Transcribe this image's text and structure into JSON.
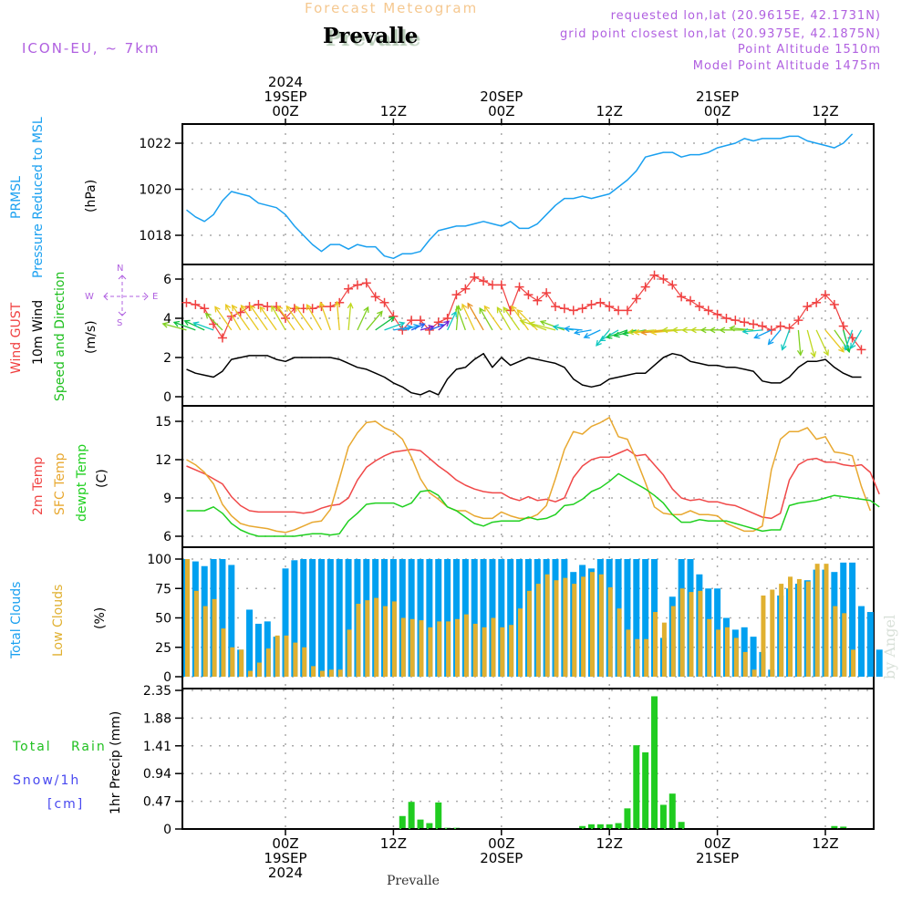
{
  "header": {
    "model": "ICON-EU, ~ 7km",
    "title": "Forecast Meteogram",
    "station": "Prevalle",
    "requested": "requested lon,lat (20.9615E, 42.1731N)",
    "grid_point": "grid point closest lon,lat (20.9375E, 42.1875N)",
    "point_altitude": "Point Altitude 1510m",
    "model_altitude": "Model Point Altitude 1475m"
  },
  "footer": {
    "station": "Prevalle",
    "watermark": "by Angel"
  },
  "time_axis": {
    "start_hour": -11,
    "end_hour": 65,
    "top_ticks": [
      {
        "hour": 0,
        "lines": [
          "2024",
          "19SEP",
          "00Z"
        ]
      },
      {
        "hour": 12,
        "lines": [
          "12Z"
        ]
      },
      {
        "hour": 24,
        "lines": [
          "20SEP",
          "00Z"
        ]
      },
      {
        "hour": 36,
        "lines": [
          "12Z"
        ]
      },
      {
        "hour": 48,
        "lines": [
          "21SEP",
          "00Z"
        ]
      },
      {
        "hour": 60,
        "lines": [
          "12Z"
        ]
      }
    ],
    "bottom_ticks": [
      {
        "hour": 0,
        "lines": [
          "00Z",
          "19SEP",
          "2024"
        ]
      },
      {
        "hour": 12,
        "lines": [
          "12Z"
        ]
      },
      {
        "hour": 24,
        "lines": [
          "00Z",
          "20SEP"
        ]
      },
      {
        "hour": 36,
        "lines": [
          "12Z"
        ]
      },
      {
        "hour": 48,
        "lines": [
          "00Z",
          "21SEP"
        ]
      },
      {
        "hour": 60,
        "lines": [
          "12Z"
        ]
      }
    ]
  },
  "labels": {
    "pressure": {
      "line1": "PRMSL",
      "line2": "Pressure Reduced to MSL",
      "unit": "(hPa)"
    },
    "wind": {
      "gust": "Wind GUST",
      "wind10": "10m Wind",
      "speeddir": "Speed and Direction",
      "unit": "(m/s)",
      "compass": {
        "n": "N",
        "s": "S",
        "w": "W",
        "e": "E"
      }
    },
    "temp": {
      "t2m": "2m Temp",
      "sfc": "SFC Temp",
      "dewpt": "dewpt Temp",
      "unit": "(C)"
    },
    "clouds": {
      "total": "Total Clouds",
      "low": "Low Clouds",
      "unit": "(%)"
    },
    "precip": {
      "total": "Total",
      "rain": "Rain",
      "snow": "Snow/1h",
      "snow_unit": "[cm]",
      "axis": "1hr Precip (mm)"
    }
  },
  "colors": {
    "pressure": "#1aa0f0",
    "gust": "#f04040",
    "wind10": "#000000",
    "t2m": "#f04848",
    "sfc": "#e8a830",
    "dewpt": "#20d020",
    "total_clouds": "#00a0f0",
    "low_clouds": "#e0b030",
    "precip": "#20cc20",
    "label_purple": "#b060e0",
    "label_blue": "#4848f0"
  },
  "chart_data": [
    {
      "type": "line",
      "title": "PRMSL Pressure Reduced to MSL",
      "ylabel": "(hPa)",
      "ylim": [
        1016.9,
        1022.8
      ],
      "yticks": [
        "1018",
        "1020",
        "1022"
      ],
      "ytick_values": [
        1018,
        1020,
        1022
      ],
      "grid": true,
      "series": [
        {
          "name": "PRMSL",
          "values": [
            1019.1,
            1018.8,
            1018.6,
            1018.9,
            1019.5,
            1019.9,
            1019.8,
            1019.7,
            1019.4,
            1019.3,
            1019.2,
            1018.9,
            1018.4,
            1018.0,
            1017.6,
            1017.3,
            1017.6,
            1017.6,
            1017.4,
            1017.6,
            1017.5,
            1017.5,
            1017.1,
            1017.0,
            1017.2,
            1017.2,
            1017.3,
            1017.8,
            1018.2,
            1018.3,
            1018.4,
            1018.4,
            1018.5,
            1018.6,
            1018.5,
            1018.4,
            1018.6,
            1018.3,
            1018.3,
            1018.5,
            1018.9,
            1019.3,
            1019.6,
            1019.6,
            1019.7,
            1019.6,
            1019.7,
            1019.8,
            1020.1,
            1020.4,
            1020.8,
            1021.4,
            1021.5,
            1021.6,
            1021.6,
            1021.4,
            1021.5,
            1021.5,
            1021.6,
            1021.8,
            1021.9,
            1022.0,
            1022.2,
            1022.1,
            1022.2,
            1022.2,
            1022.2,
            1022.3,
            1022.3,
            1022.1,
            1022.0,
            1021.9,
            1021.8,
            1022.0,
            1022.4
          ]
        }
      ]
    },
    {
      "type": "line",
      "title": "Wind GUST / 10m Wind Speed and Direction",
      "ylabel": "(m/s)",
      "ylim": [
        -0.3,
        6.6
      ],
      "yticks": [
        "0",
        "2",
        "4",
        "6"
      ],
      "ytick_values": [
        0,
        2,
        4,
        6
      ],
      "grid": true,
      "series": [
        {
          "name": "Wind GUST",
          "marker": "+",
          "values": [
            4.8,
            4.7,
            4.5,
            3.7,
            3.0,
            4.1,
            4.3,
            4.6,
            4.7,
            4.6,
            4.6,
            4.0,
            4.5,
            4.5,
            4.5,
            4.6,
            4.6,
            4.8,
            5.5,
            5.7,
            5.8,
            5.1,
            4.8,
            4.1,
            3.4,
            3.9,
            3.9,
            3.4,
            3.8,
            4.0,
            5.2,
            5.5,
            6.1,
            5.9,
            5.7,
            5.7,
            4.4,
            5.6,
            5.2,
            4.9,
            5.3,
            4.6,
            4.5,
            4.4,
            4.5,
            4.7,
            4.8,
            4.6,
            4.4,
            4.4,
            5.0,
            5.6,
            6.2,
            6.0,
            5.7,
            5.1,
            4.9,
            4.6,
            4.4,
            4.2,
            4.0,
            3.9,
            3.8,
            3.7,
            3.6,
            3.4,
            3.6,
            3.5,
            3.9,
            4.6,
            4.8,
            5.2,
            4.7,
            3.6,
            3.0,
            2.4
          ]
        },
        {
          "name": "10m Wind",
          "values": [
            1.4,
            1.2,
            1.1,
            1.0,
            1.3,
            1.9,
            2.0,
            2.1,
            2.1,
            2.1,
            1.9,
            1.8,
            2.0,
            2.0,
            2.0,
            2.0,
            2.0,
            1.9,
            1.7,
            1.5,
            1.4,
            1.2,
            1.0,
            0.7,
            0.5,
            0.2,
            0.1,
            0.3,
            0.1,
            0.9,
            1.4,
            1.5,
            1.9,
            2.2,
            1.5,
            2.0,
            1.6,
            1.8,
            2.0,
            1.9,
            1.8,
            1.7,
            1.5,
            0.9,
            0.6,
            0.5,
            0.6,
            0.9,
            1.0,
            1.1,
            1.2,
            1.2,
            1.6,
            2.0,
            2.2,
            2.1,
            1.8,
            1.7,
            1.6,
            1.6,
            1.5,
            1.5,
            1.4,
            1.3,
            0.8,
            0.7,
            0.7,
            1.0,
            1.5,
            1.8,
            1.8,
            1.9,
            1.5,
            1.2,
            1.0,
            1.0
          ]
        },
        {
          "name": "Wind direction arrows (deg from which wind blows, colored by speed)",
          "values": [
            105,
            110,
            115,
            110,
            135,
            145,
            150,
            145,
            145,
            145,
            145,
            150,
            145,
            145,
            145,
            150,
            160,
            175,
            185,
            205,
            220,
            235,
            250,
            260,
            255,
            245,
            255,
            250,
            230,
            205,
            185,
            160,
            155,
            150,
            150,
            145,
            150,
            145,
            145,
            135,
            110,
            105,
            110,
            100,
            95,
            80,
            65,
            40,
            60,
            70,
            75,
            80,
            85,
            85,
            85,
            85,
            90,
            90,
            90,
            90,
            90,
            90,
            90,
            95,
            85,
            65,
            40,
            20,
            355,
            345,
            335,
            320,
            325,
            345,
            20,
            30
          ]
        }
      ]
    },
    {
      "type": "line",
      "title": "2m Temp / SFC Temp / dewpt Temp",
      "ylabel": "(C)",
      "ylim": [
        5.5,
        15.7
      ],
      "yticks": [
        "6",
        "9",
        "12",
        "15"
      ],
      "ytick_values": [
        6,
        9,
        12,
        15
      ],
      "grid": true,
      "series": [
        {
          "name": "2m Temp",
          "values": [
            11.5,
            11.2,
            10.9,
            10.5,
            10.1,
            9.1,
            8.4,
            8.0,
            7.9,
            7.9,
            7.9,
            7.9,
            7.9,
            7.8,
            7.9,
            8.2,
            8.4,
            8.5,
            9.0,
            10.4,
            11.4,
            11.9,
            12.3,
            12.6,
            12.7,
            12.8,
            12.7,
            12.1,
            11.5,
            11.0,
            10.4,
            10.0,
            9.7,
            9.5,
            9.4,
            9.4,
            9.0,
            8.8,
            9.1,
            8.8,
            8.9,
            8.7,
            9.0,
            10.6,
            11.5,
            12.0,
            12.2,
            12.2,
            12.5,
            12.8,
            12.3,
            12.4,
            11.6,
            10.8,
            9.7,
            9.0,
            8.8,
            8.9,
            8.7,
            8.7,
            8.5,
            8.4,
            8.1,
            7.8,
            7.5,
            7.4,
            7.8,
            10.4,
            11.6,
            12.0,
            12.1,
            11.8,
            11.8,
            11.6,
            11.5,
            11.6,
            11.0,
            9.3
          ]
        },
        {
          "name": "SFC Temp",
          "values": [
            12.0,
            11.6,
            11.0,
            10.1,
            8.5,
            7.6,
            7.0,
            6.8,
            6.7,
            6.6,
            6.4,
            6.3,
            6.5,
            6.8,
            7.1,
            7.2,
            8.1,
            10.5,
            13.0,
            14.1,
            14.9,
            15.0,
            14.5,
            14.2,
            13.6,
            12.2,
            10.5,
            9.4,
            8.9,
            8.3,
            8.0,
            8.0,
            7.6,
            7.4,
            7.4,
            7.9,
            7.6,
            7.4,
            7.4,
            7.7,
            8.4,
            10.5,
            12.8,
            14.2,
            14.0,
            14.6,
            14.9,
            15.3,
            13.8,
            13.6,
            12.0,
            10.2,
            8.3,
            7.8,
            7.7,
            7.7,
            8.0,
            7.7,
            7.7,
            7.6,
            7.0,
            6.7,
            6.4,
            6.4,
            6.8,
            11.2,
            13.6,
            14.2,
            14.2,
            14.5,
            13.6,
            13.8,
            12.6,
            12.5,
            12.3,
            9.9,
            8.0
          ]
        },
        {
          "name": "dewpt Temp",
          "values": [
            8.0,
            8.0,
            8.0,
            8.3,
            7.8,
            7.0,
            6.5,
            6.2,
            6.0,
            6.0,
            6.0,
            6.0,
            6.0,
            6.1,
            6.2,
            6.2,
            6.1,
            6.2,
            7.2,
            7.8,
            8.5,
            8.6,
            8.6,
            8.6,
            8.3,
            8.6,
            9.5,
            9.6,
            9.2,
            8.3,
            8.0,
            7.5,
            7.0,
            6.8,
            7.1,
            7.2,
            7.2,
            7.2,
            7.5,
            7.3,
            7.4,
            7.7,
            8.4,
            8.5,
            8.9,
            9.5,
            9.8,
            10.3,
            10.9,
            10.5,
            10.1,
            9.7,
            9.2,
            8.6,
            7.7,
            7.1,
            7.1,
            7.3,
            7.2,
            7.2,
            7.2,
            7.0,
            6.8,
            6.6,
            6.4,
            6.5,
            6.5,
            8.4,
            8.6,
            8.7,
            8.8,
            9.0,
            9.2,
            9.1,
            9.0,
            8.9,
            8.8,
            8.3
          ]
        }
      ]
    },
    {
      "type": "bar",
      "title": "Total Clouds / Low Clouds",
      "ylabel": "(%)",
      "ylim": [
        0,
        100
      ],
      "yticks": [
        "0",
        "25",
        "50",
        "75",
        "100"
      ],
      "ytick_values": [
        0,
        25,
        50,
        75,
        100
      ],
      "grid": true,
      "series": [
        {
          "name": "Total Clouds",
          "values": [
            100,
            98,
            94,
            100,
            100,
            95,
            23,
            57,
            45,
            47,
            34,
            92,
            99,
            100,
            100,
            100,
            100,
            100,
            100,
            100,
            100,
            100,
            100,
            100,
            100,
            100,
            100,
            100,
            100,
            100,
            100,
            100,
            100,
            100,
            100,
            100,
            100,
            100,
            100,
            100,
            100,
            100,
            100,
            89,
            95,
            92,
            100,
            100,
            100,
            100,
            100,
            100,
            100,
            33,
            68,
            100,
            100,
            87,
            75,
            75,
            50,
            40,
            42,
            34,
            21,
            6,
            69,
            75,
            79,
            82,
            91,
            91,
            89,
            97,
            97,
            60,
            55,
            23
          ]
        },
        {
          "name": "Low Clouds",
          "values": [
            100,
            73,
            60,
            66,
            41,
            25,
            23,
            5,
            12,
            24,
            35,
            35,
            29,
            25,
            9,
            5,
            6,
            6,
            40,
            62,
            65,
            67,
            60,
            64,
            50,
            49,
            48,
            42,
            47,
            47,
            49,
            53,
            45,
            42,
            50,
            42,
            44,
            58,
            73,
            79,
            87,
            82,
            84,
            79,
            85,
            89,
            87,
            76,
            58,
            40,
            32,
            32,
            55,
            46,
            60,
            75,
            72,
            73,
            49,
            40,
            42,
            33,
            21,
            6,
            69,
            74,
            79,
            85,
            83,
            81,
            96,
            96,
            60,
            54,
            23
          ]
        }
      ]
    },
    {
      "type": "bar",
      "title": "1hr Precip (mm)",
      "ylabel": "1hr Precip (mm)",
      "ylim": [
        0,
        2.35
      ],
      "yticks": [
        "0",
        "0.47",
        "0.94",
        "1.41",
        "1.88",
        "2.35"
      ],
      "ytick_values": [
        0,
        0.47,
        0.94,
        1.41,
        1.88,
        2.35
      ],
      "grid": true,
      "series": [
        {
          "name": "Total Rain",
          "values": [
            0,
            0,
            0,
            0,
            0,
            0,
            0,
            0,
            0,
            0,
            0,
            0,
            0,
            0,
            0,
            0,
            0,
            0,
            0,
            0,
            0,
            0,
            0,
            0,
            0.22,
            0.46,
            0.16,
            0.1,
            0.45,
            0.02,
            0.02,
            0,
            0,
            0,
            0,
            0,
            0,
            0,
            0,
            0,
            0,
            0,
            0,
            0,
            0.05,
            0.08,
            0.08,
            0.08,
            0.1,
            0.35,
            1.42,
            1.3,
            2.25,
            0.41,
            0.6,
            0.12,
            0,
            0,
            0,
            0,
            0,
            0,
            0,
            0,
            0,
            0,
            0,
            0,
            0,
            0,
            0,
            0,
            0.05,
            0.04,
            0,
            0,
            0
          ]
        }
      ]
    }
  ]
}
